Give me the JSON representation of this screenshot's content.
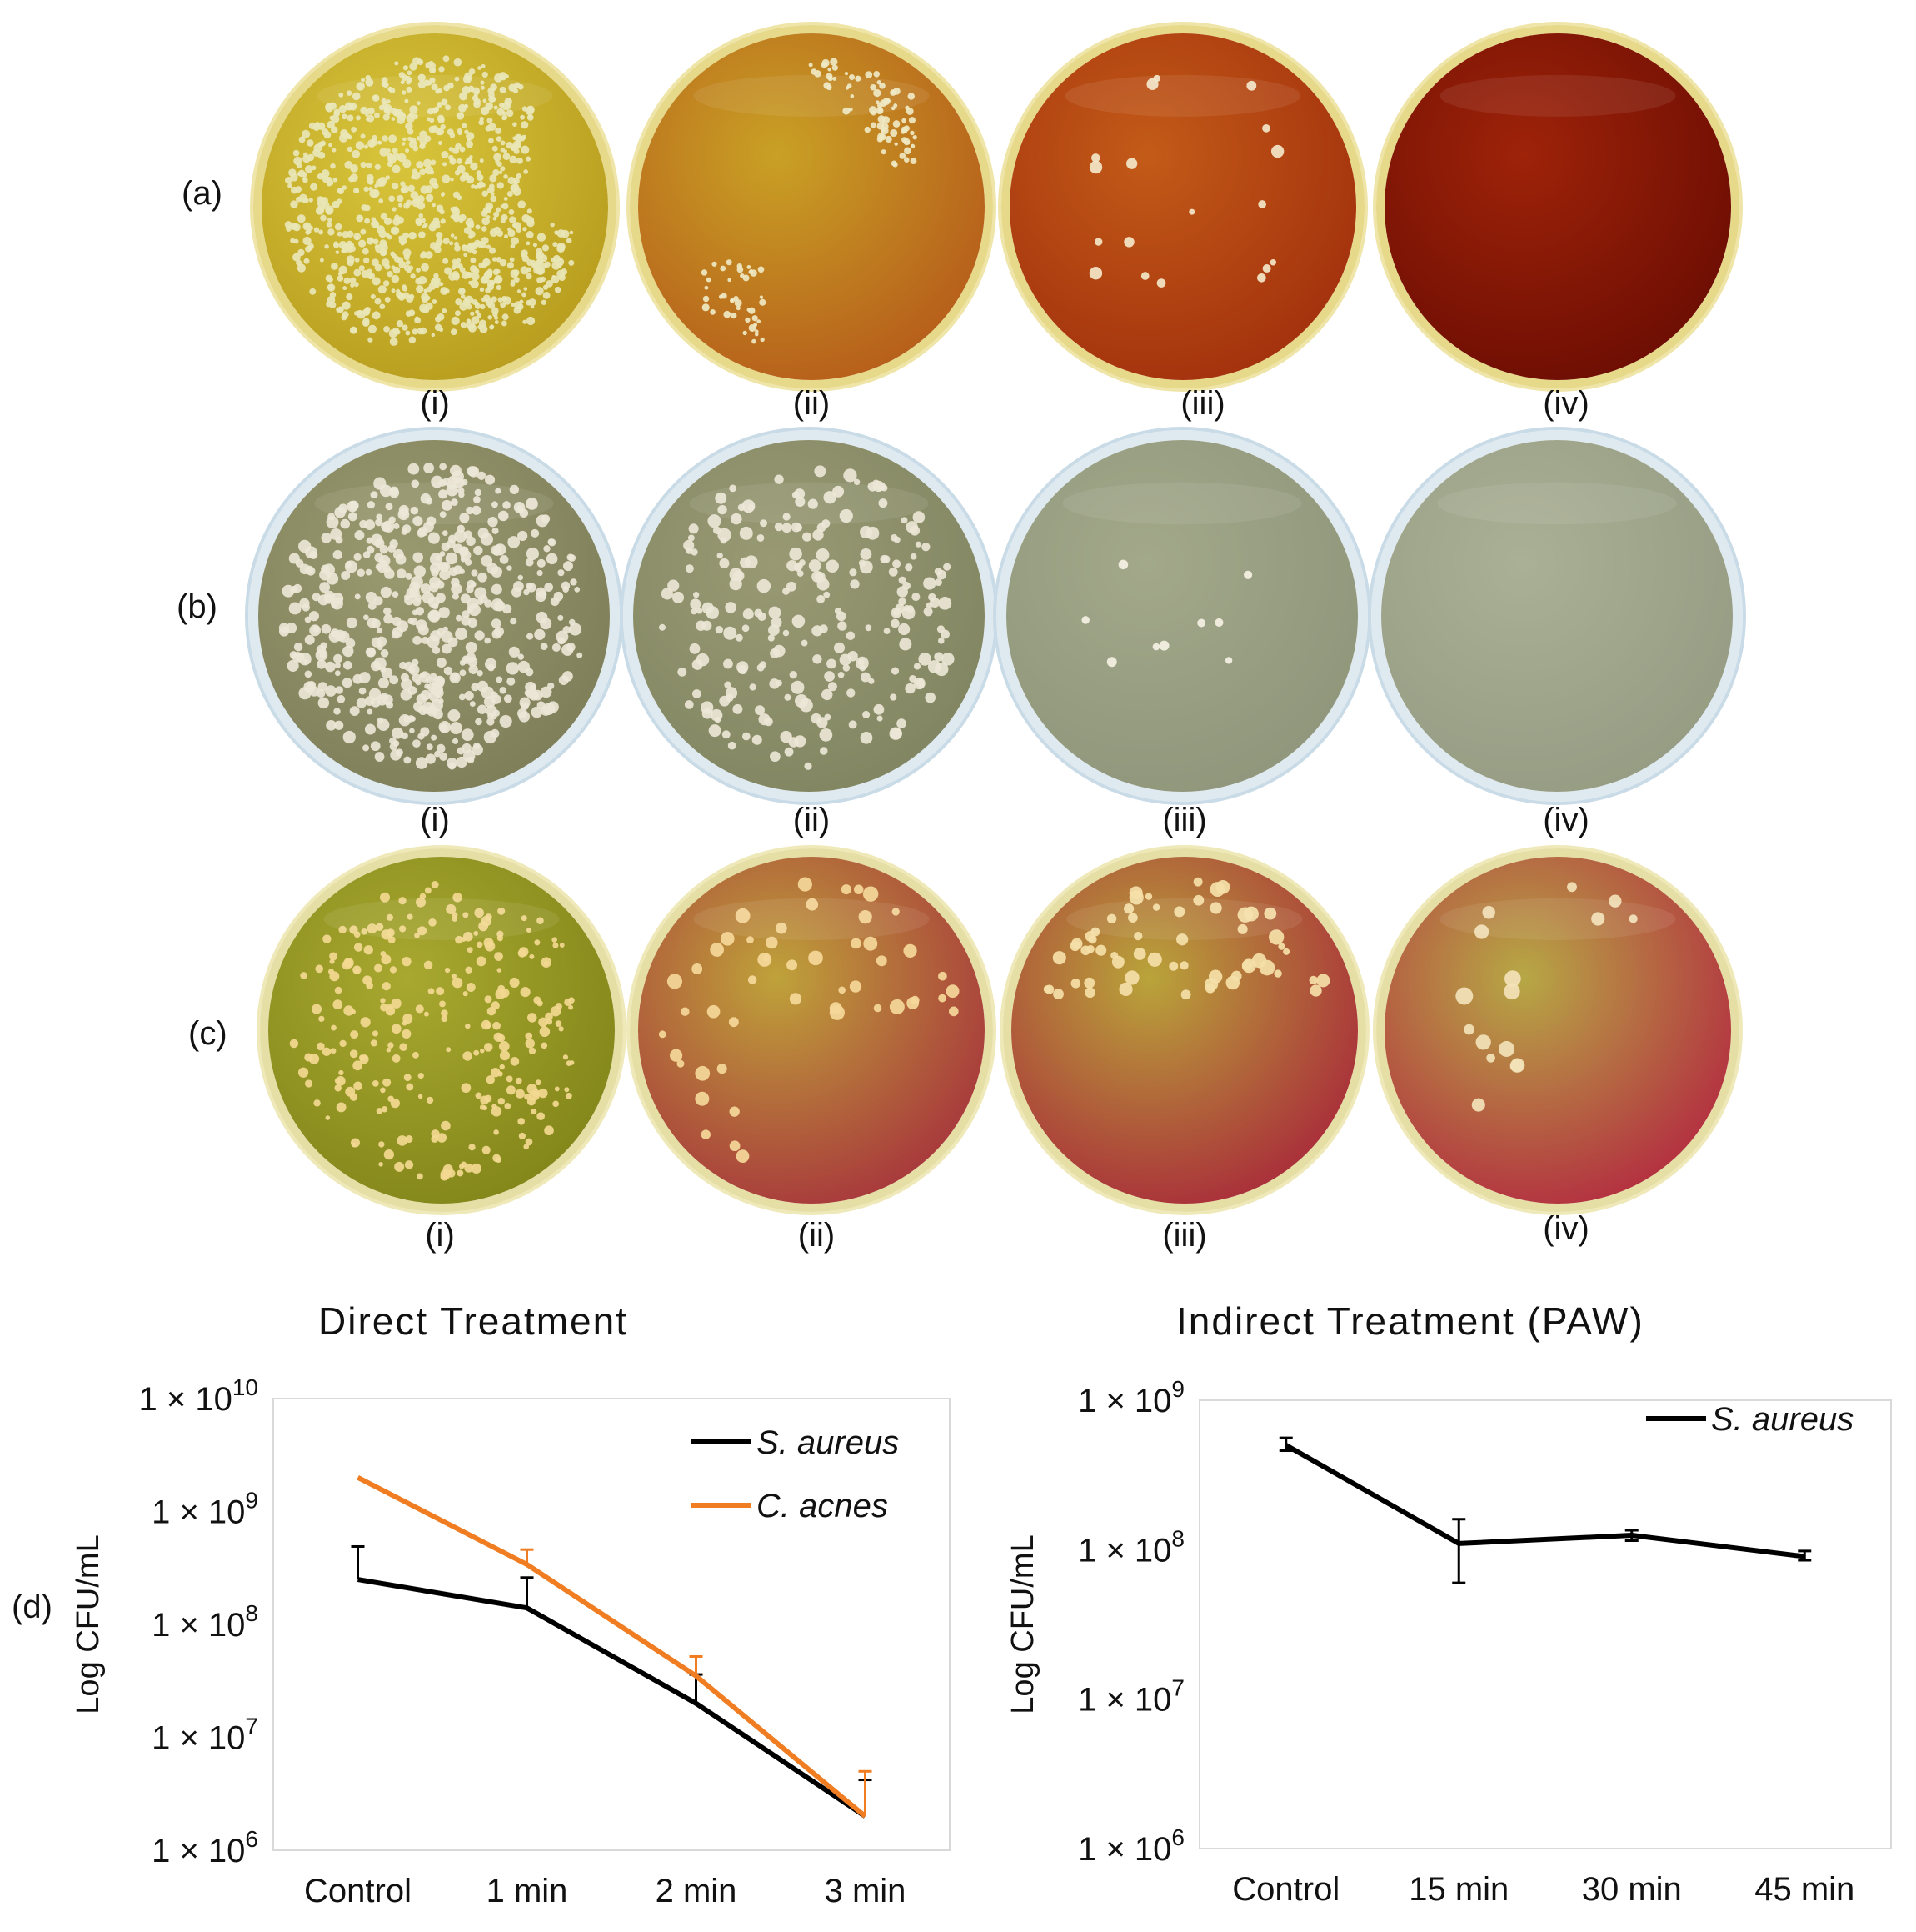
{
  "row_labels": [
    "(a)",
    "(b)",
    "(c)"
  ],
  "plate_labels": [
    "(i)",
    "(ii)",
    "(iii)",
    "(iv)"
  ],
  "section_titles": {
    "direct": "Direct Treatment",
    "indirect": "Indirect Treatment (PAW)"
  },
  "panel_d_label": "(d)",
  "plate_colors": {
    "a": [
      "#c9b52a",
      "#c38a1f",
      "#b9450f",
      "#8c1606"
    ],
    "b": [
      "#8f8f62",
      "#8d8f66",
      "#9aa081",
      "#a1a88c"
    ],
    "c": [
      "#9a9a28",
      "#b06a2a",
      "#b0402f",
      "#b24038"
    ]
  },
  "chart_data": [
    {
      "type": "line",
      "ylabel": "Log CFU/mL",
      "yscale": "log",
      "ylim": [
        1000000,
        10000000000
      ],
      "ytick_labels": [
        "1 × 10",
        "1 × 10",
        "1 × 10",
        "1 × 10",
        "1 × 10"
      ],
      "ytick_exponents": [
        "6",
        "7",
        "8",
        "9",
        "10"
      ],
      "ytick_values": [
        1000000,
        10000000,
        100000000,
        1000000000,
        10000000000
      ],
      "categories": [
        "Control",
        "1 min",
        "2 min",
        "3 min"
      ],
      "legend": "top-right",
      "grid": false,
      "series": [
        {
          "name": "S. aureus",
          "color": "#000000",
          "values": [
            250000000,
            140000000,
            20000000,
            2000000
          ],
          "error_upper": [
            490000000,
            260000000,
            36000000,
            4200000
          ]
        },
        {
          "name": "C. acnes",
          "color": "#f07d21",
          "values": [
            2000000000,
            340000000,
            35000000,
            2000000
          ],
          "error_upper": [
            2000000000,
            460000000,
            52000000,
            5000000
          ]
        }
      ]
    },
    {
      "type": "line",
      "ylabel": "Log CFU/mL",
      "yscale": "log",
      "ylim": [
        1000000,
        1000000000
      ],
      "ytick_labels": [
        "1 × 10",
        "1 × 10",
        "1 × 10",
        "1 × 10"
      ],
      "ytick_exponents": [
        "6",
        "7",
        "8",
        "9"
      ],
      "ytick_values": [
        1000000,
        10000000,
        100000000,
        1000000000
      ],
      "categories": [
        "Control",
        "15 min",
        "30 min",
        "45 min"
      ],
      "legend": "top-right",
      "grid": false,
      "series": [
        {
          "name": "S. aureus",
          "color": "#000000",
          "values": [
            500000000,
            110000000,
            125000000,
            90000000
          ],
          "error_lower": [
            460000000,
            60000000,
            115000000,
            85000000
          ],
          "error_upper": [
            560000000,
            160000000,
            135000000,
            98000000
          ]
        }
      ]
    }
  ]
}
